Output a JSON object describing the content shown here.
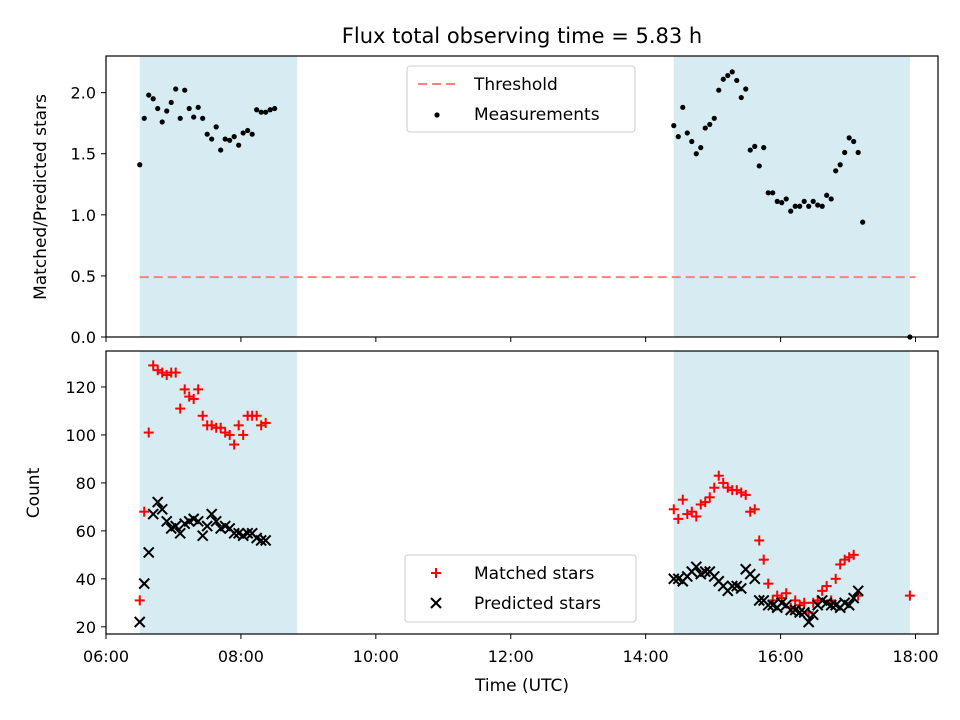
{
  "figure": {
    "title": "Flux total observing time = 5.83 h"
  },
  "chart_data": [
    {
      "type": "scatter",
      "panel": "top",
      "ylabel": "Matched/Predicted stars",
      "xlabel": "",
      "xlim": [
        "06:00",
        "18:20"
      ],
      "ylim": [
        0,
        2.3
      ],
      "yticks": [
        0.0,
        0.5,
        1.0,
        1.5,
        2.0
      ],
      "ytick_labels": [
        "0.0",
        "0.5",
        "1.0",
        "1.5",
        "2.0"
      ],
      "grid": false,
      "legend_position": "upper center",
      "legend": [
        {
          "label": "Threshold",
          "marker": "dashed-line",
          "color": "#ff7f7f"
        },
        {
          "label": "Measurements",
          "marker": "dot",
          "color": "#000000"
        }
      ],
      "threshold": {
        "value": 0.49,
        "x_start": "06:30",
        "x_end": "18:00",
        "color": "#ff7f7f"
      },
      "shaded_intervals": [
        {
          "start": "06:30",
          "end": "08:50",
          "color": "#add8e6"
        },
        {
          "start": "14:25",
          "end": "17:55",
          "color": "#add8e6"
        }
      ],
      "series": [
        {
          "name": "Measurements",
          "color": "#000000",
          "points": [
            [
              "06:30",
              1.41
            ],
            [
              "06:34",
              1.79
            ],
            [
              "06:38",
              1.98
            ],
            [
              "06:42",
              1.95
            ],
            [
              "06:46",
              1.87
            ],
            [
              "06:50",
              1.76
            ],
            [
              "06:54",
              1.85
            ],
            [
              "06:58",
              1.92
            ],
            [
              "07:02",
              2.03
            ],
            [
              "07:06",
              1.79
            ],
            [
              "07:10",
              2.02
            ],
            [
              "07:14",
              1.87
            ],
            [
              "07:18",
              1.8
            ],
            [
              "07:22",
              1.88
            ],
            [
              "07:26",
              1.79
            ],
            [
              "07:30",
              1.66
            ],
            [
              "07:34",
              1.62
            ],
            [
              "07:38",
              1.72
            ],
            [
              "07:42",
              1.53
            ],
            [
              "07:46",
              1.62
            ],
            [
              "07:50",
              1.61
            ],
            [
              "07:54",
              1.64
            ],
            [
              "07:58",
              1.57
            ],
            [
              "08:02",
              1.67
            ],
            [
              "08:06",
              1.69
            ],
            [
              "08:10",
              1.66
            ],
            [
              "08:14",
              1.86
            ],
            [
              "08:18",
              1.84
            ],
            [
              "08:22",
              1.84
            ],
            [
              "08:26",
              1.86
            ],
            [
              "08:30",
              1.87
            ],
            [
              "14:25",
              1.73
            ],
            [
              "14:29",
              1.64
            ],
            [
              "14:33",
              1.88
            ],
            [
              "14:37",
              1.67
            ],
            [
              "14:41",
              1.6
            ],
            [
              "14:45",
              1.5
            ],
            [
              "14:49",
              1.55
            ],
            [
              "14:53",
              1.71
            ],
            [
              "14:57",
              1.74
            ],
            [
              "15:01",
              1.79
            ],
            [
              "15:05",
              2.02
            ],
            [
              "15:09",
              2.11
            ],
            [
              "15:13",
              2.14
            ],
            [
              "15:17",
              2.17
            ],
            [
              "15:21",
              2.1
            ],
            [
              "15:25",
              1.96
            ],
            [
              "15:29",
              2.03
            ],
            [
              "15:33",
              1.53
            ],
            [
              "15:37",
              1.56
            ],
            [
              "15:41",
              1.4
            ],
            [
              "15:45",
              1.55
            ],
            [
              "15:49",
              1.18
            ],
            [
              "15:53",
              1.18
            ],
            [
              "15:57",
              1.11
            ],
            [
              "16:01",
              1.1
            ],
            [
              "16:05",
              1.13
            ],
            [
              "16:09",
              1.03
            ],
            [
              "16:13",
              1.07
            ],
            [
              "16:17",
              1.07
            ],
            [
              "16:21",
              1.11
            ],
            [
              "16:25",
              1.07
            ],
            [
              "16:29",
              1.11
            ],
            [
              "16:33",
              1.08
            ],
            [
              "16:37",
              1.07
            ],
            [
              "16:41",
              1.16
            ],
            [
              "16:45",
              1.13
            ],
            [
              "16:49",
              1.36
            ],
            [
              "16:53",
              1.41
            ],
            [
              "16:57",
              1.51
            ],
            [
              "17:01",
              1.63
            ],
            [
              "17:05",
              1.6
            ],
            [
              "17:09",
              1.51
            ],
            [
              "17:13",
              0.94
            ],
            [
              "17:55",
              0.0
            ]
          ]
        }
      ]
    },
    {
      "type": "scatter",
      "panel": "bottom",
      "xlabel": "Time (UTC)",
      "ylabel": "Count",
      "xlim": [
        "06:00",
        "18:20"
      ],
      "ylim": [
        17,
        135
      ],
      "xticks": [
        "06:00",
        "08:00",
        "10:00",
        "12:00",
        "14:00",
        "16:00",
        "18:00"
      ],
      "yticks": [
        20,
        40,
        60,
        80,
        100,
        120
      ],
      "ytick_labels": [
        "20",
        "40",
        "60",
        "80",
        "100",
        "120"
      ],
      "grid": false,
      "legend_position": "lower center",
      "legend": [
        {
          "label": "Matched stars",
          "marker": "plus",
          "color": "#ff0000"
        },
        {
          "label": "Predicted stars",
          "marker": "x",
          "color": "#000000"
        }
      ],
      "shaded_intervals": [
        {
          "start": "06:30",
          "end": "08:50",
          "color": "#add8e6"
        },
        {
          "start": "14:25",
          "end": "17:55",
          "color": "#add8e6"
        }
      ],
      "series": [
        {
          "name": "Matched stars",
          "color": "#ff0000",
          "marker": "plus",
          "points": [
            [
              "06:30",
              31
            ],
            [
              "06:34",
              68
            ],
            [
              "06:38",
              101
            ],
            [
              "06:42",
              129
            ],
            [
              "06:46",
              127
            ],
            [
              "06:50",
              126
            ],
            [
              "06:54",
              125
            ],
            [
              "06:58",
              126
            ],
            [
              "07:02",
              126
            ],
            [
              "07:06",
              111
            ],
            [
              "07:10",
              119
            ],
            [
              "07:14",
              116
            ],
            [
              "07:18",
              115
            ],
            [
              "07:22",
              119
            ],
            [
              "07:26",
              108
            ],
            [
              "07:30",
              104
            ],
            [
              "07:34",
              104
            ],
            [
              "07:38",
              103
            ],
            [
              "07:42",
              103
            ],
            [
              "07:46",
              101
            ],
            [
              "07:50",
              100
            ],
            [
              "07:54",
              96
            ],
            [
              "07:58",
              104
            ],
            [
              "08:02",
              100
            ],
            [
              "08:06",
              108
            ],
            [
              "08:10",
              108
            ],
            [
              "08:14",
              108
            ],
            [
              "08:18",
              104
            ],
            [
              "08:22",
              105
            ],
            [
              "14:25",
              69
            ],
            [
              "14:29",
              65
            ],
            [
              "14:33",
              73
            ],
            [
              "14:37",
              67
            ],
            [
              "14:41",
              68
            ],
            [
              "14:45",
              66
            ],
            [
              "14:49",
              71
            ],
            [
              "14:53",
              72
            ],
            [
              "14:57",
              74
            ],
            [
              "15:01",
              78
            ],
            [
              "15:05",
              83
            ],
            [
              "15:09",
              80
            ],
            [
              "15:13",
              78
            ],
            [
              "15:17",
              77
            ],
            [
              "15:21",
              77
            ],
            [
              "15:25",
              76
            ],
            [
              "15:29",
              75
            ],
            [
              "15:33",
              68
            ],
            [
              "15:37",
              69
            ],
            [
              "15:41",
              56
            ],
            [
              "15:45",
              48
            ],
            [
              "15:49",
              38
            ],
            [
              "15:53",
              31
            ],
            [
              "15:57",
              33
            ],
            [
              "16:01",
              32
            ],
            [
              "16:05",
              34
            ],
            [
              "16:09",
              28
            ],
            [
              "16:13",
              31
            ],
            [
              "16:17",
              29
            ],
            [
              "16:21",
              30
            ],
            [
              "16:25",
              26
            ],
            [
              "16:29",
              30
            ],
            [
              "16:33",
              31
            ],
            [
              "16:37",
              35
            ],
            [
              "16:41",
              37
            ],
            [
              "16:45",
              31
            ],
            [
              "16:49",
              40
            ],
            [
              "16:53",
              46
            ],
            [
              "16:57",
              48
            ],
            [
              "17:01",
              49
            ],
            [
              "17:05",
              50
            ],
            [
              "17:09",
              33
            ],
            [
              "17:55",
              33
            ]
          ]
        },
        {
          "name": "Predicted stars",
          "color": "#000000",
          "marker": "x",
          "points": [
            [
              "06:30",
              22
            ],
            [
              "06:34",
              38
            ],
            [
              "06:38",
              51
            ],
            [
              "06:42",
              67
            ],
            [
              "06:46",
              72
            ],
            [
              "06:50",
              69
            ],
            [
              "06:54",
              64
            ],
            [
              "06:58",
              61
            ],
            [
              "07:02",
              62
            ],
            [
              "07:06",
              59
            ],
            [
              "07:10",
              63
            ],
            [
              "07:14",
              64
            ],
            [
              "07:18",
              65
            ],
            [
              "07:22",
              64
            ],
            [
              "07:26",
              58
            ],
            [
              "07:30",
              62
            ],
            [
              "07:34",
              67
            ],
            [
              "07:38",
              64
            ],
            [
              "07:42",
              61
            ],
            [
              "07:46",
              62
            ],
            [
              "07:50",
              61
            ],
            [
              "07:54",
              59
            ],
            [
              "07:58",
              59
            ],
            [
              "08:02",
              58
            ],
            [
              "08:06",
              59
            ],
            [
              "08:10",
              59
            ],
            [
              "08:14",
              57
            ],
            [
              "08:18",
              56
            ],
            [
              "08:22",
              56
            ],
            [
              "14:25",
              40
            ],
            [
              "14:29",
              40
            ],
            [
              "14:33",
              39
            ],
            [
              "14:37",
              41
            ],
            [
              "14:41",
              43
            ],
            [
              "14:45",
              45
            ],
            [
              "14:49",
              42
            ],
            [
              "14:53",
              43
            ],
            [
              "14:57",
              43
            ],
            [
              "15:01",
              41
            ],
            [
              "15:05",
              39
            ],
            [
              "15:09",
              37
            ],
            [
              "15:13",
              35
            ],
            [
              "15:17",
              37
            ],
            [
              "15:21",
              37
            ],
            [
              "15:25",
              36
            ],
            [
              "15:29",
              44
            ],
            [
              "15:33",
              42
            ],
            [
              "15:37",
              40
            ],
            [
              "15:41",
              31
            ],
            [
              "15:45",
              31
            ],
            [
              "15:49",
              29
            ],
            [
              "15:53",
              29
            ],
            [
              "15:57",
              28
            ],
            [
              "16:01",
              30
            ],
            [
              "16:05",
              29
            ],
            [
              "16:09",
              27
            ],
            [
              "16:13",
              27
            ],
            [
              "16:17",
              26
            ],
            [
              "16:21",
              26
            ],
            [
              "16:25",
              22
            ],
            [
              "16:29",
              25
            ],
            [
              "16:33",
              29
            ],
            [
              "16:37",
              31
            ],
            [
              "16:41",
              30
            ],
            [
              "16:45",
              29
            ],
            [
              "16:49",
              29
            ],
            [
              "16:53",
              28
            ],
            [
              "16:57",
              30
            ],
            [
              "17:01",
              29
            ],
            [
              "17:05",
              32
            ],
            [
              "17:09",
              35
            ]
          ]
        }
      ]
    }
  ]
}
